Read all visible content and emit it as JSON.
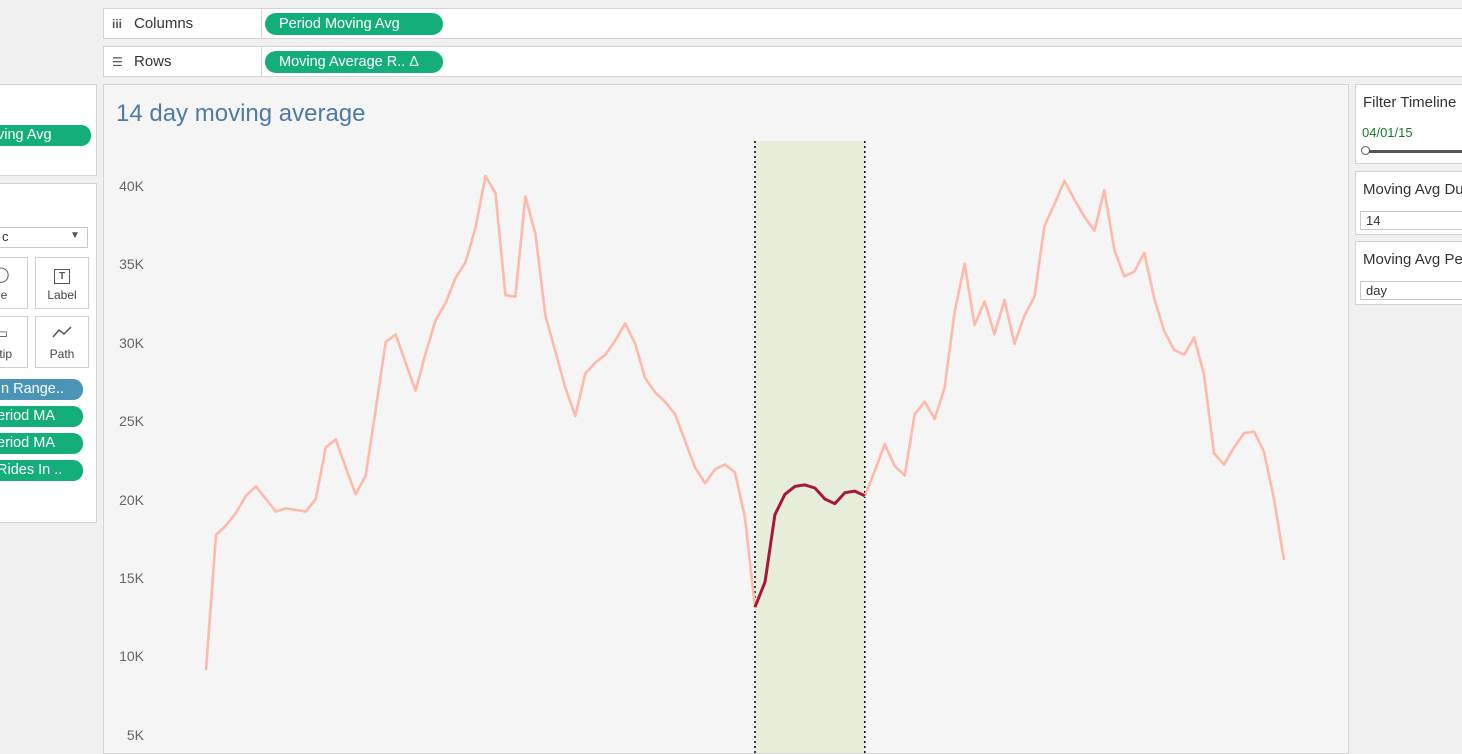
{
  "shelves": {
    "columns": {
      "label": "Columns",
      "icon": "columns-icon",
      "pill": "Period Moving Avg"
    },
    "rows": {
      "label": "Rows",
      "icon": "rows-icon",
      "pill": "Moving Average R.. Δ"
    }
  },
  "left_panel": {
    "filter_pill": "ving Avg",
    "marks_type": "c",
    "buttons": [
      {
        "label": "ze",
        "icon": "size-icon"
      },
      {
        "label": "Label",
        "icon": "label-icon"
      },
      {
        "label": "oltip",
        "icon": "tooltip-icon"
      },
      {
        "label": "Path",
        "icon": "path-icon"
      }
    ],
    "pills": [
      "In Range..",
      "eriod MA",
      "eriod MA",
      "Rides In .."
    ],
    "pill_colors": [
      "#4a95b6",
      "#13ae7a",
      "#13ae7a",
      "#13ae7a"
    ]
  },
  "viz": {
    "title": "14 day moving average"
  },
  "filters": {
    "timeline": {
      "title": "Filter Timeline",
      "value": "04/01/15"
    },
    "duration": {
      "title": "Moving Avg Du",
      "value": "14"
    },
    "period": {
      "title": "Moving Avg Pe",
      "value": "day"
    }
  },
  "chart_data": {
    "type": "line",
    "title": "14 day moving average",
    "ylim": [
      5000,
      43000
    ],
    "yticks": [
      5000,
      10000,
      15000,
      20000,
      25000,
      30000,
      35000,
      40000
    ],
    "ytick_labels": [
      "5K",
      "10K",
      "15K",
      "20K",
      "25K",
      "30K",
      "35K",
      "40K"
    ],
    "grid": false,
    "colors": {
      "base": "#ffb9a9",
      "highlight": "#a8173a",
      "band": "#e6edd8"
    },
    "highlight_range": [
      55,
      66
    ],
    "series": [
      {
        "values": [
          9200,
          17800,
          18400,
          19200,
          20300,
          20900,
          20100,
          19300,
          19500,
          19400,
          19300,
          20100,
          23400,
          23900,
          22100,
          20400,
          21600,
          25800,
          30100,
          30600,
          28800,
          27000,
          29400,
          31500,
          32600,
          34200,
          35200,
          37400,
          40700,
          39600,
          33100,
          33000,
          39400,
          37000,
          31800,
          29500,
          27200,
          25400,
          28100,
          28800,
          29300,
          30200,
          31300,
          30000,
          27800,
          26900,
          26300,
          25500,
          23800,
          22100,
          21100,
          22000,
          22300,
          21800,
          18900,
          13200,
          14800,
          19100,
          20400,
          20900,
          21000,
          20800,
          20100,
          19800,
          20500,
          20600,
          20300,
          21900,
          23600,
          22200,
          21600,
          25500,
          26300,
          25200,
          27200,
          32000,
          35100,
          31200,
          32700,
          30600,
          32800,
          30000,
          31800,
          33000,
          37500,
          38900,
          40400,
          39200,
          38100,
          37200,
          39800,
          36000,
          34300,
          34600,
          35800,
          32900,
          30800,
          29600,
          29300,
          30400,
          28000,
          23000,
          22300,
          23400,
          24300,
          24400,
          23100,
          20100,
          16200
        ]
      }
    ]
  }
}
